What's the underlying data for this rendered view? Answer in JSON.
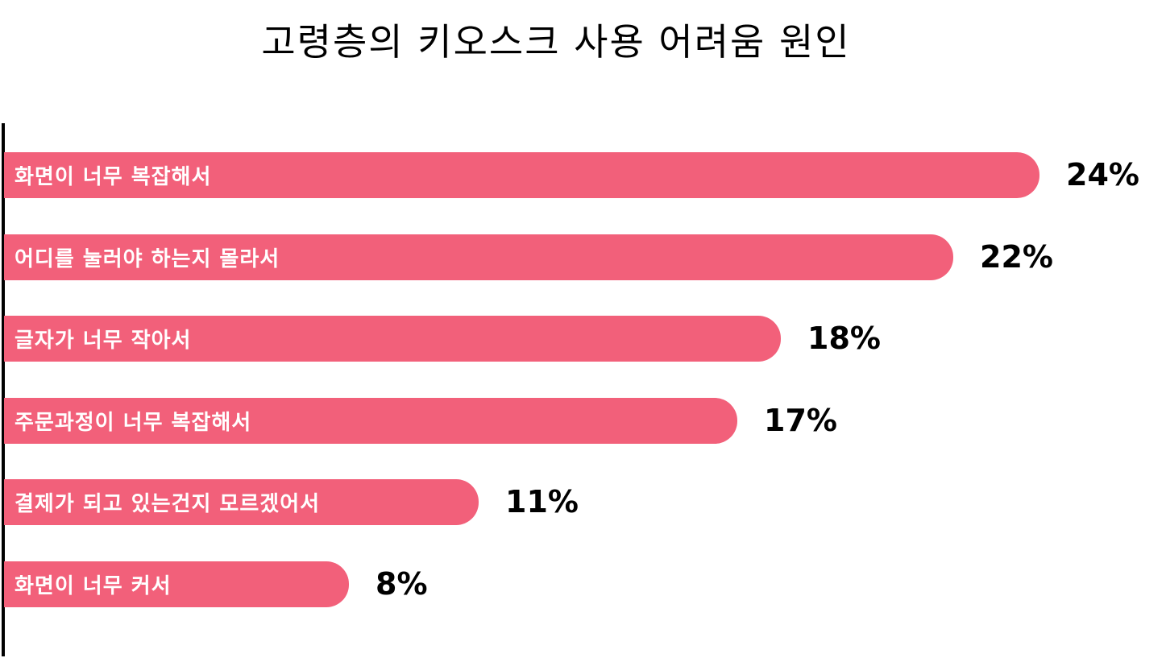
{
  "chart_data": {
    "type": "bar",
    "orientation": "horizontal",
    "title": "고령층의 키오스크 사용 어려움 원인",
    "categories": [
      "화면이 너무 복잡해서",
      "어디를 눌러야 하는지 몰라서",
      "글자가 너무 작아서",
      "주문과정이 너무 복잡해서",
      "결제가 되고 있는건지 모르겠어서",
      "화면이 너무 커서"
    ],
    "values": [
      24,
      22,
      18,
      17,
      11,
      8
    ],
    "value_labels": [
      "24%",
      "22%",
      "18%",
      "17%",
      "11%",
      "8%"
    ],
    "unit": "%",
    "xlim": [
      0,
      24
    ],
    "grid": false,
    "legend": "none",
    "bar_color": "#f2607a"
  }
}
